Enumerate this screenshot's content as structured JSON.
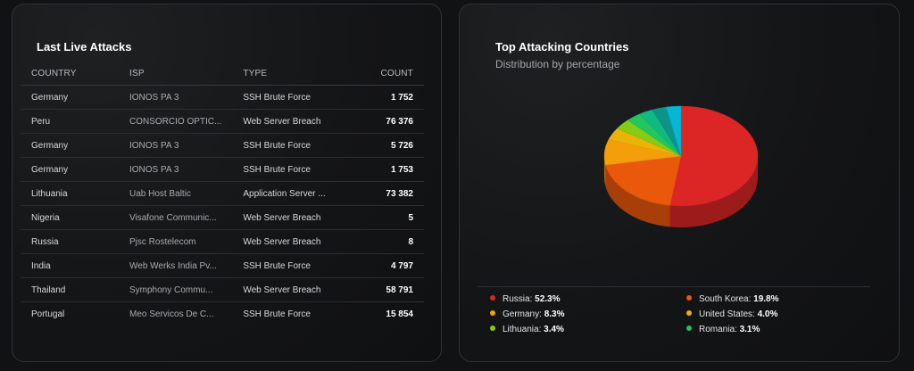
{
  "attacks": {
    "title": "Last Live Attacks",
    "columns": [
      "COUNTRY",
      "ISP",
      "TYPE",
      "COUNT"
    ],
    "rows": [
      {
        "country": "Germany",
        "isp": "IONOS PA 3",
        "type": "SSH Brute Force",
        "count": "1 752"
      },
      {
        "country": "Peru",
        "isp": "CONSORCIO OPTIC...",
        "type": "Web Server Breach",
        "count": "76 376"
      },
      {
        "country": "Germany",
        "isp": "IONOS PA 3",
        "type": "SSH Brute Force",
        "count": "5 726"
      },
      {
        "country": "Germany",
        "isp": "IONOS PA 3",
        "type": "SSH Brute Force",
        "count": "1 753"
      },
      {
        "country": "Lithuania",
        "isp": "Uab Host Baltic",
        "type": "Application Server ...",
        "count": "73 382"
      },
      {
        "country": "Nigeria",
        "isp": "Visafone Communic...",
        "type": "Web Server Breach",
        "count": "5"
      },
      {
        "country": "Russia",
        "isp": "Pjsc Rostelecom",
        "type": "Web Server Breach",
        "count": "8"
      },
      {
        "country": "India",
        "isp": "Web Werks India Pv...",
        "type": "SSH Brute Force",
        "count": "4 797"
      },
      {
        "country": "Thailand",
        "isp": "Symphony Commu...",
        "type": "Web Server Breach",
        "count": "58 791"
      },
      {
        "country": "Portugal",
        "isp": "Meo Servicos De C...",
        "type": "SSH Brute Force",
        "count": "15 854"
      }
    ]
  },
  "countries": {
    "title": "Top Attacking Countries",
    "subtitle": "Distribution by percentage",
    "legend": [
      {
        "label": "Russia:",
        "value": "52.3%",
        "color": "#dc2626"
      },
      {
        "label": "South Korea:",
        "value": "19.8%",
        "color": "#ea580c"
      },
      {
        "label": "Germany:",
        "value": "8.3%",
        "color": "#f59e0b"
      },
      {
        "label": "United States:",
        "value": "4.0%",
        "color": "#eab308"
      },
      {
        "label": "Lithuania:",
        "value": "3.4%",
        "color": "#84cc16"
      },
      {
        "label": "Romania:",
        "value": "3.1%",
        "color": "#22c55e"
      }
    ]
  },
  "chart_data": {
    "type": "pie",
    "title": "Top Attacking Countries",
    "subtitle": "Distribution by percentage",
    "slices": [
      {
        "label": "Russia",
        "value": 52.3,
        "color": "#dc2626"
      },
      {
        "label": "South Korea",
        "value": 19.8,
        "color": "#ea580c"
      },
      {
        "label": "Germany",
        "value": 8.3,
        "color": "#f59e0b"
      },
      {
        "label": "United States",
        "value": 4.0,
        "color": "#eab308"
      },
      {
        "label": "Lithuania",
        "value": 3.4,
        "color": "#84cc16"
      },
      {
        "label": "Romania",
        "value": 3.1,
        "color": "#22c55e"
      },
      {
        "label": "",
        "value": 3.0,
        "color": "#10b981"
      },
      {
        "label": "",
        "value": 3.0,
        "color": "#0d9488"
      },
      {
        "label": "",
        "value": 3.1,
        "color": "#06b6d4"
      }
    ]
  }
}
